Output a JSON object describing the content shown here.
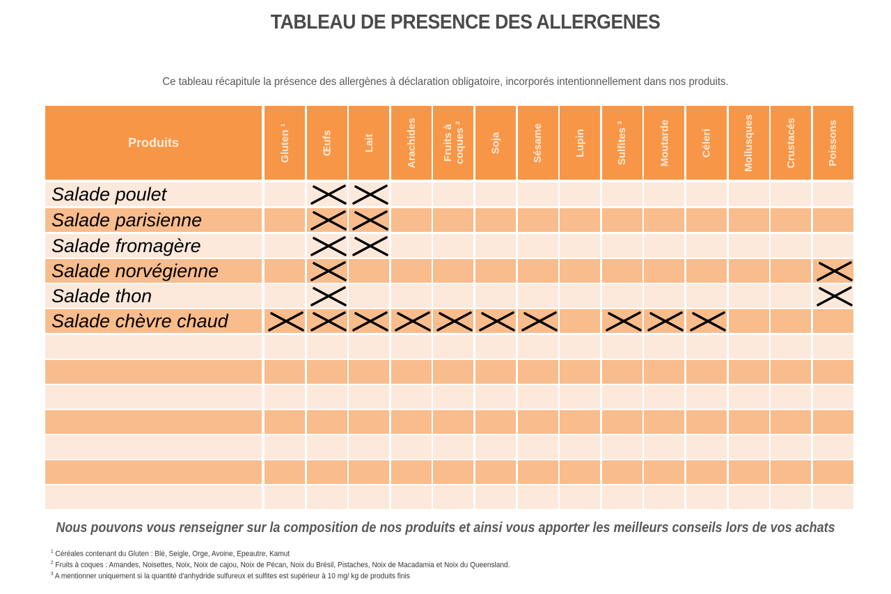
{
  "title": "TABLEAU DE PRESENCE DES ALLERGENES",
  "subtitle": "Ce tableau récapitule la présence des allergènes à déclaration obligatoire, incorporés intentionnellement dans nos produits.",
  "colors": {
    "header": "#f79646",
    "row_dark": "#f9bc8c",
    "row_light": "#fce9dc",
    "header_text": "#fde9d9"
  },
  "table": {
    "product_header": "Produits",
    "allergens": [
      "Gluten ¹",
      "Œufs",
      "Lait",
      "Arachides",
      "Fruits à\ncoques ²",
      "Soja",
      "Sésame",
      "Lupin",
      "Sulfites ³",
      "Moutarde",
      "Céleri",
      "Mollusques",
      "Crustacés",
      "Poissons"
    ],
    "rows": [
      {
        "product": "Salade poulet",
        "present": [
          "Œufs",
          "Lait"
        ]
      },
      {
        "product": "Salade parisienne",
        "present": [
          "Œufs",
          "Lait"
        ]
      },
      {
        "product": "Salade fromagère",
        "present": [
          "Œufs",
          "Lait"
        ]
      },
      {
        "product": "Salade norvégienne",
        "present": [
          "Œufs",
          "Poissons"
        ]
      },
      {
        "product": "Salade thon",
        "present": [
          "Œufs",
          "Poissons"
        ]
      },
      {
        "product": "Salade chèvre chaud",
        "present": [
          "Gluten",
          "Œufs",
          "Lait",
          "Arachides",
          "Fruits à coques",
          "Soja",
          "Sésame",
          "Sulfites",
          "Moutarde",
          "Céleri"
        ]
      },
      {
        "product": "",
        "present": []
      },
      {
        "product": "",
        "present": []
      },
      {
        "product": "",
        "present": []
      },
      {
        "product": "",
        "present": []
      },
      {
        "product": "",
        "present": []
      },
      {
        "product": "",
        "present": []
      },
      {
        "product": "",
        "present": []
      }
    ],
    "marks": [
      [
        0,
        1,
        1,
        0,
        0,
        0,
        0,
        0,
        0,
        0,
        0,
        0,
        0,
        0
      ],
      [
        0,
        1,
        1,
        0,
        0,
        0,
        0,
        0,
        0,
        0,
        0,
        0,
        0,
        0
      ],
      [
        0,
        1,
        1,
        0,
        0,
        0,
        0,
        0,
        0,
        0,
        0,
        0,
        0,
        0
      ],
      [
        0,
        1,
        0,
        0,
        0,
        0,
        0,
        0,
        0,
        0,
        0,
        0,
        0,
        1
      ],
      [
        0,
        1,
        0,
        0,
        0,
        0,
        0,
        0,
        0,
        0,
        0,
        0,
        0,
        1
      ],
      [
        1,
        1,
        1,
        1,
        1,
        1,
        1,
        0,
        1,
        1,
        1,
        0,
        0,
        0
      ],
      [
        0,
        0,
        0,
        0,
        0,
        0,
        0,
        0,
        0,
        0,
        0,
        0,
        0,
        0
      ],
      [
        0,
        0,
        0,
        0,
        0,
        0,
        0,
        0,
        0,
        0,
        0,
        0,
        0,
        0
      ],
      [
        0,
        0,
        0,
        0,
        0,
        0,
        0,
        0,
        0,
        0,
        0,
        0,
        0,
        0
      ],
      [
        0,
        0,
        0,
        0,
        0,
        0,
        0,
        0,
        0,
        0,
        0,
        0,
        0,
        0
      ],
      [
        0,
        0,
        0,
        0,
        0,
        0,
        0,
        0,
        0,
        0,
        0,
        0,
        0,
        0
      ],
      [
        0,
        0,
        0,
        0,
        0,
        0,
        0,
        0,
        0,
        0,
        0,
        0,
        0,
        0
      ],
      [
        0,
        0,
        0,
        0,
        0,
        0,
        0,
        0,
        0,
        0,
        0,
        0,
        0,
        0
      ]
    ]
  },
  "note": "Nous pouvons vous renseigner sur la composition de nos produits et ainsi vous apporter les meilleurs conseils lors de vos achats",
  "footnotes": [
    {
      "num": "1",
      "text": " Céréales contenant du Gluten  : Blé, Seigle, Orge, Avoine, Epeautre, Kamut"
    },
    {
      "num": "2",
      "text": " Fruits à coques  : Amandes, Noisettes, Noix, Noix de cajou, Noix de Pécan, Noix du Brésil, Pistaches, Noix de Macadamia et Noix du Queensland."
    },
    {
      "num": "3",
      "text": " A mentionner uniquement si la quantité d'anhydride sulfureux et sulfites est supérieur à 10 mg/ kg de produits finis"
    }
  ]
}
